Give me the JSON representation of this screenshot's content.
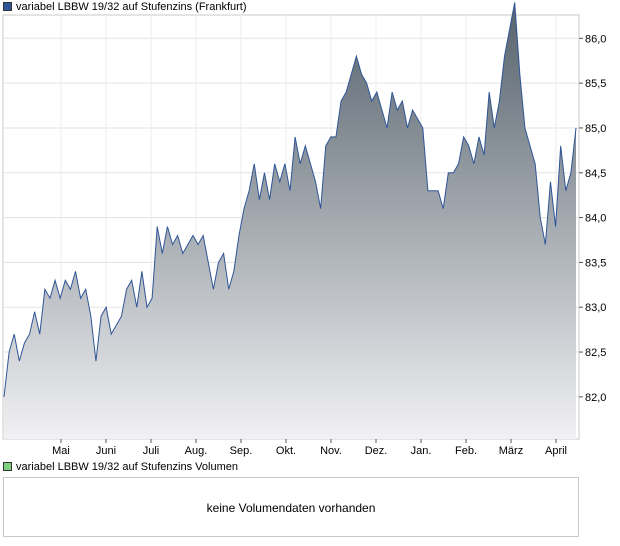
{
  "price_legend": {
    "label": "variabel LBBW 19/32 auf Stufenzins (Frankfurt)",
    "color": "#2f5597"
  },
  "volume_legend": {
    "label": "variabel LBBW 19/32 auf Stufenzins Volumen",
    "color": "#7fd07f"
  },
  "volume_panel": {
    "message": "keine Volumendaten vorhanden"
  },
  "chart_data": {
    "type": "area",
    "title": "variabel LBBW 19/32 auf Stufenzins (Frankfurt)",
    "xlabel": "",
    "ylabel": "",
    "x_tick_labels": [
      "Mai",
      "Juni",
      "Juli",
      "Aug.",
      "Sep.",
      "Okt.",
      "Nov.",
      "Dez.",
      "Jan.",
      "Feb.",
      "März",
      "April"
    ],
    "y_tick_labels": [
      "82,0",
      "82,5",
      "83,0",
      "83,5",
      "84,0",
      "84,5",
      "85,0",
      "85,5",
      "86,0"
    ],
    "y_ticks": [
      82.0,
      82.5,
      83.0,
      83.5,
      84.0,
      84.5,
      85.0,
      85.5,
      86.0
    ],
    "ylim": [
      81.53,
      86.26
    ],
    "y_axis_side": "right",
    "grid": true,
    "line_color": "#2f5597",
    "fill_top_color": "#56626c",
    "fill_bottom_color": "#f1f1f3",
    "series": [
      {
        "values": [
          82.0,
          82.5,
          82.7,
          82.4,
          82.6,
          82.7,
          82.95,
          82.7,
          83.2,
          83.1,
          83.3,
          83.1,
          83.3,
          83.2,
          83.4,
          83.1,
          83.2,
          82.9,
          82.4,
          82.9,
          83.0,
          82.7,
          82.8,
          82.9,
          83.2,
          83.3,
          83.0,
          83.4,
          83.0,
          83.1,
          83.9,
          83.6,
          83.9,
          83.7,
          83.8,
          83.6,
          83.7,
          83.8,
          83.7,
          83.8,
          83.5,
          83.2,
          83.5,
          83.6,
          83.2,
          83.4,
          83.8,
          84.1,
          84.3,
          84.6,
          84.2,
          84.5,
          84.2,
          84.6,
          84.4,
          84.6,
          84.3,
          84.9,
          84.6,
          84.8,
          84.6,
          84.4,
          84.1,
          84.8,
          84.9,
          84.9,
          85.3,
          85.4,
          85.6,
          85.8,
          85.6,
          85.5,
          85.3,
          85.4,
          85.2,
          85.0,
          85.4,
          85.2,
          85.3,
          85.0,
          85.2,
          85.1,
          85.0,
          84.3,
          84.3,
          84.3,
          84.1,
          84.5,
          84.5,
          84.6,
          84.9,
          84.8,
          84.6,
          84.9,
          84.7,
          85.4,
          85.0,
          85.3,
          85.8,
          86.1,
          86.4,
          85.6,
          85.0,
          84.8,
          84.6,
          84.0,
          83.7,
          84.4,
          83.9,
          84.8,
          84.3,
          84.5,
          85.0
        ]
      }
    ]
  }
}
